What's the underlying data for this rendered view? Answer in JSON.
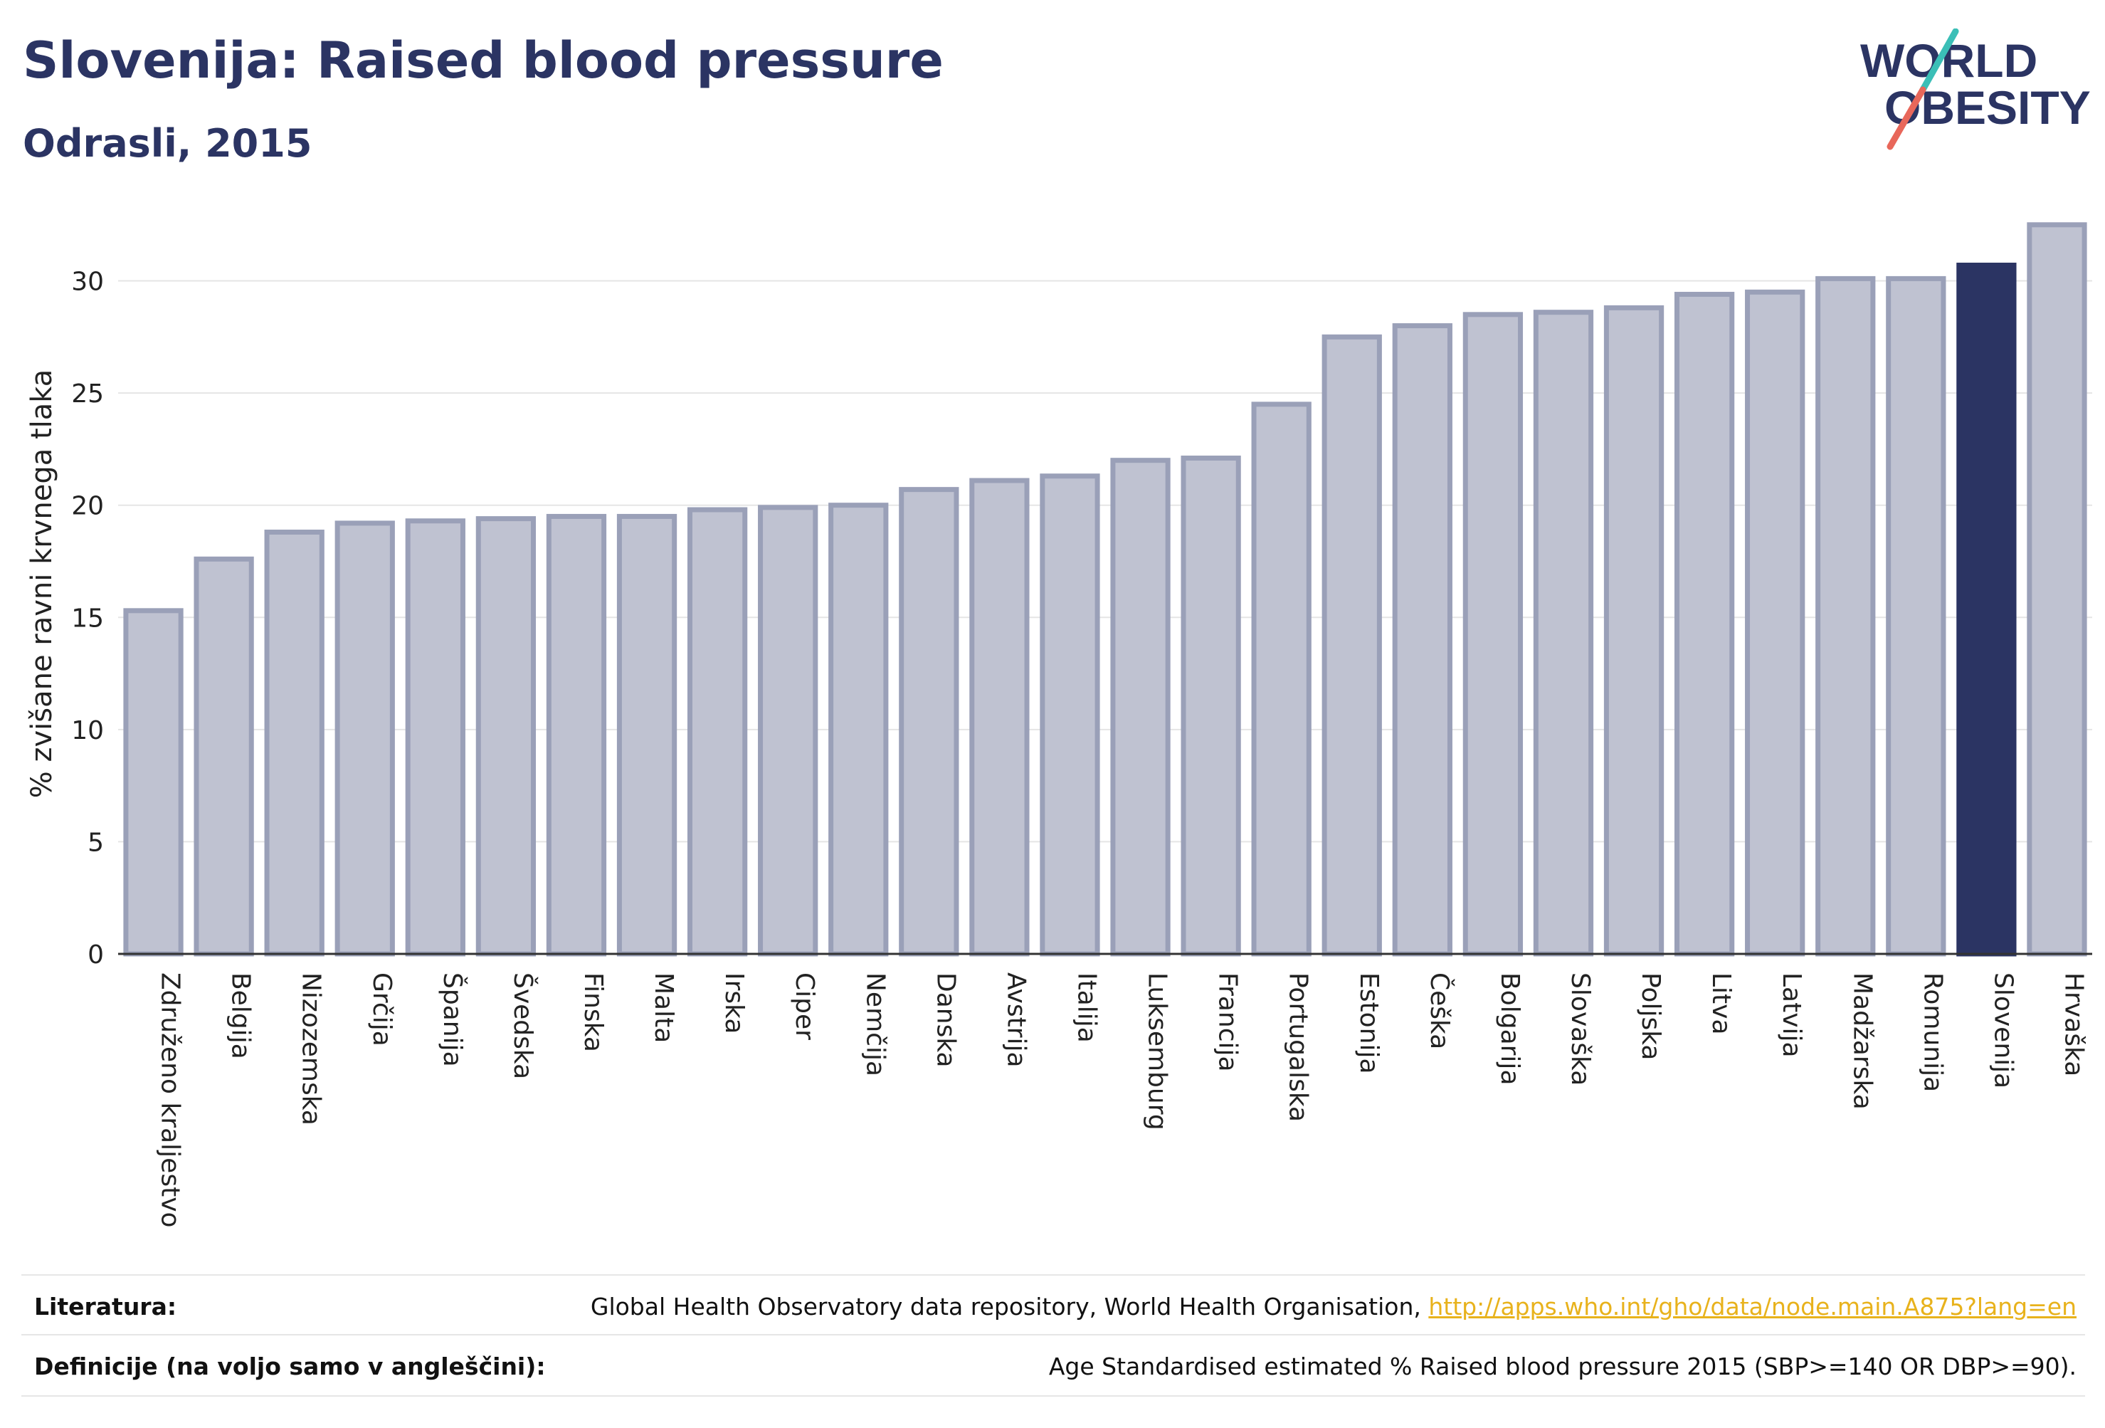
{
  "header": {
    "title": "Slovenija: Raised blood pressure",
    "subtitle": "Odrasli, 2015"
  },
  "logo": {
    "line1": "WORLD",
    "line2": "OBESITY",
    "colors": {
      "text": "#2b3463",
      "slash_top": "#3bbfb7",
      "slash_bottom": "#e8675a"
    }
  },
  "chart_data": {
    "type": "bar",
    "ylabel": "% zvišane ravni krvnega tlaka",
    "xlabel": "",
    "ylim": [
      0,
      33
    ],
    "yticks": [
      0,
      5,
      10,
      15,
      20,
      25,
      30
    ],
    "grid": true,
    "highlight": "Slovenija",
    "colors": {
      "bar": "#bfc2d1",
      "bar_edge": "#9aa0b8",
      "highlight": "#2b3463",
      "grid": "#e5e5e5"
    },
    "categories": [
      "Združeno kraljestvo",
      "Belgija",
      "Nizozemska",
      "Grčija",
      "Španija",
      "Švedska",
      "Finska",
      "Malta",
      "Irska",
      "Ciper",
      "Nemčija",
      "Danska",
      "Avstrija",
      "Italija",
      "Luksemburg",
      "Francija",
      "Portugalska",
      "Estonija",
      "Češka",
      "Bolgarija",
      "Slovaška",
      "Poljska",
      "Litva",
      "Latvija",
      "Madžarska",
      "Romunija",
      "Slovenija",
      "Hrvaška"
    ],
    "values": [
      15.3,
      17.6,
      18.8,
      19.2,
      19.3,
      19.4,
      19.5,
      19.5,
      19.8,
      19.9,
      20.0,
      20.7,
      21.1,
      21.3,
      22.0,
      22.1,
      24.5,
      27.5,
      28.0,
      28.5,
      28.6,
      28.8,
      29.4,
      29.5,
      30.1,
      30.1,
      30.7,
      32.5
    ]
  },
  "footer": {
    "references_label": "Literatura:",
    "references_text": "Global Health Observatory data repository, World Health Organisation, ",
    "references_link": "http://apps.who.int/gho/data/node.main.A875?lang=en",
    "definitions_label": "Definicije (na voljo samo v angleščini):",
    "definitions_text": "Age Standardised estimated % Raised blood pressure 2015 (SBP>=140 OR DBP>=90)."
  }
}
